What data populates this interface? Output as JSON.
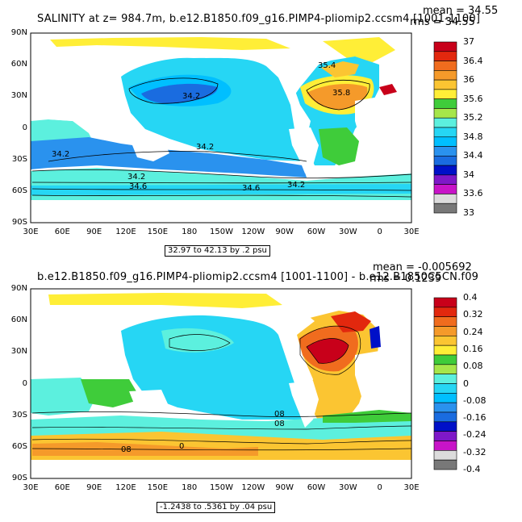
{
  "panel1": {
    "title": "SALINITY at z= 984.7m, b.e12.B1850.f09_g16.PIMP4-pliomip2.ccsm4 [1001-1100]",
    "mean": "mean = 34.55",
    "rms": "rms = 34.55",
    "range_note": "32.97 to 42.13 by .2 psu",
    "lat_ticks": [
      "90N",
      "60N",
      "30N",
      "0",
      "30S",
      "60S",
      "90S"
    ],
    "lon_ticks": [
      "30E",
      "60E",
      "90E",
      "120E",
      "150E",
      "180",
      "150W",
      "120W",
      "90W",
      "60W",
      "30W",
      "0",
      "30E"
    ],
    "contour_labels": [
      "35.4",
      "35.8",
      "34.2",
      "34.2",
      "34.2",
      "34.2",
      "34.6",
      "34.6",
      "34.2"
    ],
    "colorbar": {
      "labels": [
        "37",
        "36.4",
        "36",
        "35.6",
        "35.2",
        "34.8",
        "34.4",
        "34",
        "33.6",
        "33"
      ],
      "colors": [
        "#c8001a",
        "#e2280e",
        "#f06c1e",
        "#f59a2a",
        "#fbc532",
        "#ffee37",
        "#3fcc3a",
        "#a6e64a",
        "#5cf0de",
        "#26d6f4",
        "#00bfff",
        "#2a92ee",
        "#1a6ce0",
        "#0010c8",
        "#7e18c8",
        "#c814c8",
        "#dcdcdc",
        "#787878"
      ]
    }
  },
  "panel2": {
    "title": "b.e12.B1850.f09_g16.PIMP4-pliomip2.ccsm4 [1001-1100] - b.e12.B1850C5CN.f09",
    "mean": "mean = -0.005692",
    "rms": "rms = 0.1239",
    "range_note": "-1.2438 to .5361 by .04 psu",
    "lat_ticks": [
      "90N",
      "60N",
      "30N",
      "0",
      "30S",
      "60S",
      "90S"
    ],
    "lon_ticks": [
      "30E",
      "60E",
      "90E",
      "120E",
      "150E",
      "180",
      "150W",
      "120W",
      "90W",
      "60W",
      "30W",
      "0",
      "30E"
    ],
    "contour_labels": [
      "08",
      "08",
      "0",
      "08"
    ],
    "colorbar": {
      "labels": [
        "0.4",
        "0.32",
        "0.24",
        "0.16",
        "0.08",
        "0",
        "-0.08",
        "-0.16",
        "-0.24",
        "-0.32",
        "-0.4"
      ],
      "colors": [
        "#c8001a",
        "#e2280e",
        "#f06c1e",
        "#f59a2a",
        "#fbc532",
        "#ffee37",
        "#3fcc3a",
        "#a6e64a",
        "#5cf0de",
        "#26d6f4",
        "#00bfff",
        "#2a92ee",
        "#1a6ce0",
        "#0010c8",
        "#7e18c8",
        "#c814c8",
        "#dcdcdc",
        "#787878"
      ]
    }
  }
}
